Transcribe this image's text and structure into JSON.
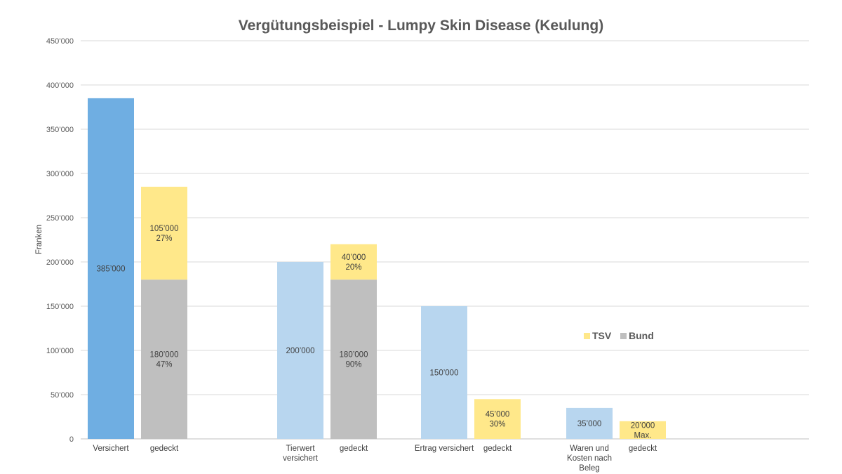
{
  "chart_data": {
    "type": "bar",
    "title": "Vergütungsbeispiel - Lumpy Skin Disease (Keulung)",
    "xlabel": "",
    "ylabel": "Franken",
    "ylim": [
      0,
      450000
    ],
    "yticks": [
      0,
      50000,
      100000,
      150000,
      200000,
      250000,
      300000,
      350000,
      400000,
      450000
    ],
    "ytick_labels": [
      "0",
      "50’000",
      "100’000",
      "150’000",
      "200’000",
      "250’000",
      "300’000",
      "350’000",
      "400’000",
      "450’000"
    ],
    "grid": true,
    "legend": {
      "placement": "center-right",
      "entries": [
        {
          "name": "TSV",
          "color": "#ffe88a"
        },
        {
          "name": "Bund",
          "color": "#bfbfbf"
        }
      ]
    },
    "groups": [
      {
        "bars": [
          {
            "category": "Versichert",
            "segments": [
              {
                "series": "Versichert",
                "value": 385000,
                "color": "#6faee2",
                "label": "385’000"
              }
            ]
          },
          {
            "category": "gedeckt",
            "segments": [
              {
                "series": "Bund",
                "value": 180000,
                "color": "#bfbfbf",
                "label": "180’000\n47%"
              },
              {
                "series": "TSV",
                "value": 105000,
                "color": "#ffe88a",
                "label": "105’000\n27%"
              }
            ]
          }
        ]
      },
      {
        "bars": [
          {
            "category": "Tierwert\nversichert",
            "segments": [
              {
                "series": "Versichert",
                "value": 200000,
                "color": "#b8d6ef",
                "label": "200’000"
              }
            ]
          },
          {
            "category": "gedeckt",
            "segments": [
              {
                "series": "Bund",
                "value": 180000,
                "color": "#bfbfbf",
                "label": "180’000\n90%"
              },
              {
                "series": "TSV",
                "value": 40000,
                "color": "#ffe88a",
                "label": "40’000\n20%"
              }
            ]
          }
        ]
      },
      {
        "bars": [
          {
            "category": "Ertrag versichert",
            "segments": [
              {
                "series": "Versichert",
                "value": 150000,
                "color": "#b8d6ef",
                "label": "150’000"
              }
            ]
          },
          {
            "category": "gedeckt",
            "segments": [
              {
                "series": "TSV",
                "value": 45000,
                "color": "#ffe88a",
                "label": "45’000\n30%"
              }
            ]
          }
        ]
      },
      {
        "bars": [
          {
            "category": "Waren und\nKosten nach\nBeleg",
            "segments": [
              {
                "series": "Versichert",
                "value": 35000,
                "color": "#b8d6ef",
                "label": "35’000"
              }
            ]
          },
          {
            "category": "gedeckt",
            "segments": [
              {
                "series": "TSV",
                "value": 20000,
                "color": "#ffe88a",
                "label": "20’000\nMax."
              }
            ]
          }
        ]
      }
    ]
  }
}
